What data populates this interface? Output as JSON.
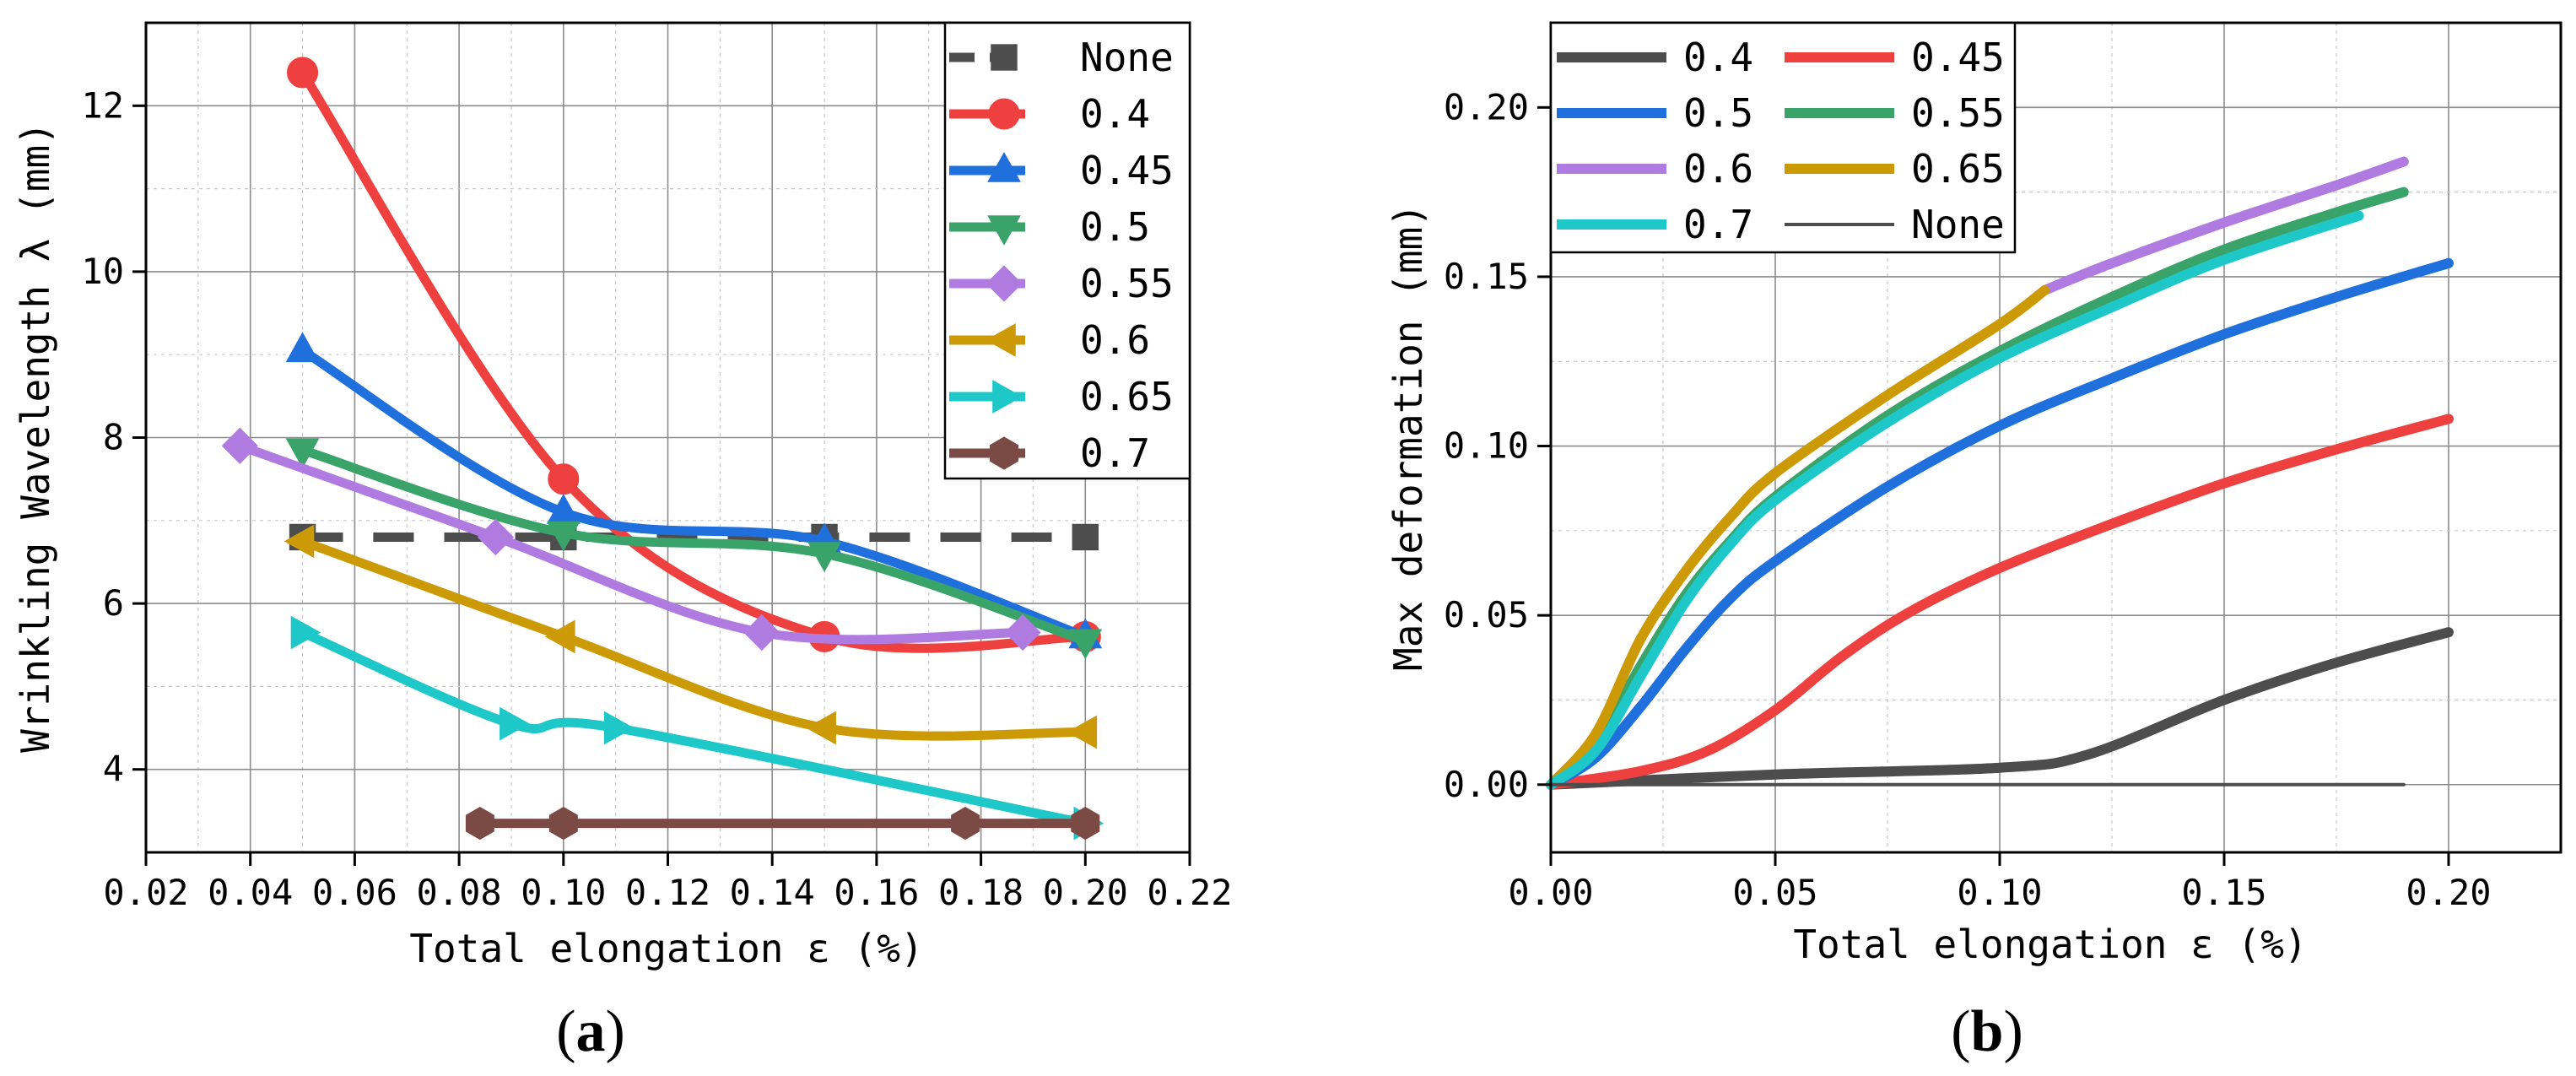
{
  "chart_data": [
    {
      "type": "line",
      "xlabel": "Total elongation ε (%)",
      "ylabel": "Wrinkling Wavelength λ (mm)",
      "xlim": [
        0.02,
        0.22
      ],
      "ylim": [
        3,
        13
      ],
      "xticks": [
        0.02,
        0.04,
        0.06,
        0.08,
        0.1,
        0.12,
        0.14,
        0.16,
        0.18,
        0.2,
        0.22
      ],
      "xtick_labels": [
        "0.02",
        "0.04",
        "0.06",
        "0.08",
        "0.10",
        "0.12",
        "0.14",
        "0.16",
        "0.18",
        "0.20",
        "0.22"
      ],
      "yticks": [
        4,
        6,
        8,
        10,
        12
      ],
      "ytick_labels": [
        "4",
        "6",
        "8",
        "10",
        "12"
      ],
      "grid": true,
      "legend_position": "top-right",
      "series": [
        {
          "name": "None",
          "marker": "square",
          "color": "#4d4d4d",
          "dash": true,
          "points": [
            [
              0.05,
              6.8
            ],
            [
              0.1,
              6.8
            ],
            [
              0.15,
              6.8
            ],
            [
              0.2,
              6.8
            ]
          ]
        },
        {
          "name": "0.4",
          "marker": "circle",
          "color": "#ef4040",
          "points": [
            [
              0.05,
              12.4
            ],
            [
              0.1,
              7.5
            ],
            [
              0.15,
              5.6
            ],
            [
              0.2,
              5.6
            ]
          ]
        },
        {
          "name": "0.45",
          "marker": "triangle-up",
          "color": "#1f6fdc",
          "points": [
            [
              0.05,
              9.05
            ],
            [
              0.1,
              7.1
            ],
            [
              0.15,
              6.75
            ],
            [
              0.2,
              5.6
            ]
          ]
        },
        {
          "name": "0.5",
          "marker": "triangle-down",
          "color": "#3aa36a",
          "points": [
            [
              0.05,
              7.85
            ],
            [
              0.1,
              6.85
            ],
            [
              0.15,
              6.6
            ],
            [
              0.2,
              5.55
            ]
          ]
        },
        {
          "name": "0.55",
          "marker": "diamond",
          "color": "#b07be0",
          "points": [
            [
              0.038,
              7.9
            ],
            [
              0.087,
              6.8
            ],
            [
              0.138,
              5.65
            ],
            [
              0.188,
              5.65
            ]
          ]
        },
        {
          "name": "0.6",
          "marker": "triangle-left",
          "color": "#cc9a06",
          "points": [
            [
              0.05,
              6.75
            ],
            [
              0.1,
              5.6
            ],
            [
              0.15,
              4.5
            ],
            [
              0.2,
              4.45
            ]
          ]
        },
        {
          "name": "0.65",
          "marker": "triangle-right",
          "color": "#1ec8c8",
          "points": [
            [
              0.05,
              5.65
            ],
            [
              0.09,
              4.55
            ],
            [
              0.11,
              4.5
            ],
            [
              0.2,
              3.35
            ]
          ]
        },
        {
          "name": "0.7",
          "marker": "hexagon",
          "color": "#7b4a44",
          "points": [
            [
              0.084,
              3.35
            ],
            [
              0.1,
              3.35
            ],
            [
              0.177,
              3.35
            ],
            [
              0.2,
              3.35
            ]
          ]
        }
      ],
      "panel_label": "(a)"
    },
    {
      "type": "line",
      "xlabel": "Total elongation ε (%)",
      "ylabel": "Max deformation (mm)",
      "xlim": [
        0.0,
        0.225
      ],
      "ylim": [
        -0.02,
        0.225
      ],
      "xticks": [
        0.0,
        0.05,
        0.1,
        0.15,
        0.2
      ],
      "xtick_labels": [
        "0.00",
        "0.05",
        "0.10",
        "0.15",
        "0.20"
      ],
      "yticks": [
        0.0,
        0.05,
        0.1,
        0.15,
        0.2
      ],
      "ytick_labels": [
        "0.00",
        "0.05",
        "0.10",
        "0.15",
        "0.20"
      ],
      "grid": true,
      "legend_position": "top-left",
      "series": [
        {
          "name": "0.4",
          "color": "#4d4d4d",
          "points": [
            [
              0,
              0
            ],
            [
              0.05,
              0.003
            ],
            [
              0.1,
              0.005
            ],
            [
              0.12,
              0.009
            ],
            [
              0.15,
              0.025
            ],
            [
              0.175,
              0.036
            ],
            [
              0.2,
              0.045
            ]
          ]
        },
        {
          "name": "0.45",
          "color": "#ef4040",
          "points": [
            [
              0,
              0
            ],
            [
              0.02,
              0.004
            ],
            [
              0.035,
              0.01
            ],
            [
              0.05,
              0.022
            ],
            [
              0.065,
              0.038
            ],
            [
              0.08,
              0.051
            ],
            [
              0.1,
              0.064
            ],
            [
              0.125,
              0.077
            ],
            [
              0.15,
              0.089
            ],
            [
              0.175,
              0.099
            ],
            [
              0.2,
              0.108
            ]
          ]
        },
        {
          "name": "0.5",
          "color": "#1f6fdc",
          "points": [
            [
              0,
              0
            ],
            [
              0.01,
              0.008
            ],
            [
              0.02,
              0.023
            ],
            [
              0.03,
              0.04
            ],
            [
              0.04,
              0.055
            ],
            [
              0.05,
              0.066
            ],
            [
              0.075,
              0.088
            ],
            [
              0.1,
              0.106
            ],
            [
              0.125,
              0.12
            ],
            [
              0.15,
              0.133
            ],
            [
              0.175,
              0.144
            ],
            [
              0.2,
              0.154
            ]
          ]
        },
        {
          "name": "0.55",
          "color": "#3aa36a",
          "points": [
            [
              0,
              0
            ],
            [
              0.01,
              0.012
            ],
            [
              0.02,
              0.035
            ],
            [
              0.03,
              0.056
            ],
            [
              0.04,
              0.072
            ],
            [
              0.05,
              0.085
            ],
            [
              0.075,
              0.109
            ],
            [
              0.1,
              0.128
            ],
            [
              0.125,
              0.144
            ],
            [
              0.15,
              0.158
            ],
            [
              0.175,
              0.169
            ],
            [
              0.19,
              0.175
            ]
          ]
        },
        {
          "name": "0.6",
          "color": "#b07be0",
          "points": [
            [
              0.11,
              0.146
            ],
            [
              0.125,
              0.154
            ],
            [
              0.15,
              0.166
            ],
            [
              0.175,
              0.177
            ],
            [
              0.19,
              0.184
            ]
          ]
        },
        {
          "name": "0.65",
          "color": "#cc9a06",
          "points": [
            [
              0,
              0
            ],
            [
              0.01,
              0.015
            ],
            [
              0.02,
              0.043
            ],
            [
              0.03,
              0.063
            ],
            [
              0.04,
              0.079
            ],
            [
              0.05,
              0.092
            ],
            [
              0.075,
              0.115
            ],
            [
              0.1,
              0.136
            ],
            [
              0.11,
              0.146
            ]
          ]
        },
        {
          "name": "0.7",
          "color": "#1ec8c8",
          "points": [
            [
              0,
              0
            ],
            [
              0.01,
              0.01
            ],
            [
              0.02,
              0.032
            ],
            [
              0.03,
              0.054
            ],
            [
              0.04,
              0.071
            ],
            [
              0.05,
              0.084
            ],
            [
              0.075,
              0.107
            ],
            [
              0.1,
              0.126
            ],
            [
              0.125,
              0.141
            ],
            [
              0.15,
              0.155
            ],
            [
              0.18,
              0.168
            ]
          ]
        },
        {
          "name": "None",
          "color": "#4d4d4d",
          "thin": true,
          "points": [
            [
              0,
              0
            ],
            [
              0.19,
              0
            ]
          ]
        }
      ],
      "panel_label": "(b)"
    }
  ],
  "legend_a": [
    "None",
    "0.4",
    "0.45",
    "0.5",
    "0.55",
    "0.6",
    "0.65",
    "0.7"
  ],
  "legend_b": [
    "0.4",
    "0.45",
    "0.5",
    "0.55",
    "0.6",
    "0.65",
    "0.7",
    "None"
  ]
}
